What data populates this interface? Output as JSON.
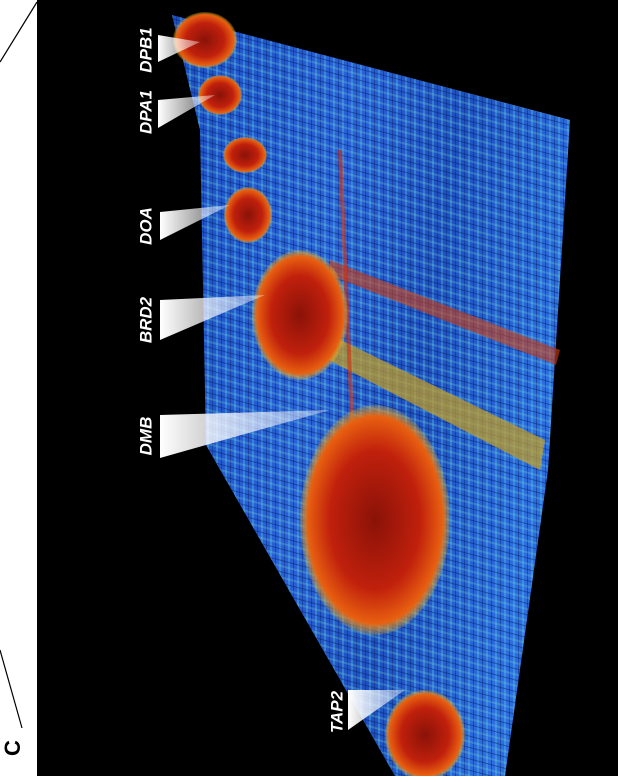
{
  "panel_label": "C",
  "gene_labels": [
    "DPB1",
    "DPA1",
    "DOA",
    "BRD2",
    "DMB",
    "TAP2"
  ]
}
